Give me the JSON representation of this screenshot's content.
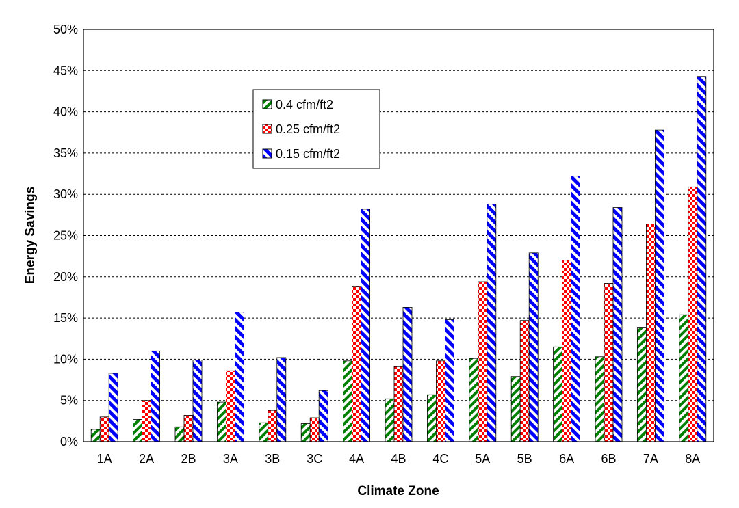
{
  "chart_data": {
    "type": "bar",
    "title": "",
    "xlabel": "Climate Zone",
    "ylabel": "Energy Savings",
    "ylim": [
      0,
      50
    ],
    "y_tick_step": 5,
    "y_tick_format": "percent",
    "grid": true,
    "legend_placement": "upper-left-inside",
    "categories": [
      "1A",
      "2A",
      "2B",
      "3A",
      "3B",
      "3C",
      "4A",
      "4B",
      "4C",
      "5A",
      "5B",
      "6A",
      "6B",
      "7A",
      "8A"
    ],
    "series": [
      {
        "name": "0.4 cfm/ft2",
        "color": "#008000",
        "pattern": "diagonal-stripes",
        "values": [
          1.5,
          2.7,
          1.8,
          4.8,
          2.3,
          2.2,
          9.8,
          5.2,
          5.7,
          10.1,
          7.9,
          11.5,
          10.3,
          13.8,
          15.4
        ]
      },
      {
        "name": "0.25 cfm/ft2",
        "color": "#ff0000",
        "pattern": "checkerboard",
        "values": [
          3.0,
          5.0,
          3.2,
          8.6,
          3.8,
          2.9,
          18.8,
          9.1,
          9.8,
          19.4,
          14.7,
          22.0,
          19.2,
          26.4,
          30.9
        ]
      },
      {
        "name": "0.15 cfm/ft2",
        "color": "#0000ff",
        "pattern": "diagonal-stripes",
        "values": [
          8.3,
          11.0,
          9.9,
          15.7,
          10.2,
          6.2,
          28.2,
          16.3,
          14.8,
          28.8,
          22.9,
          32.2,
          28.4,
          37.8,
          44.3
        ]
      }
    ]
  }
}
